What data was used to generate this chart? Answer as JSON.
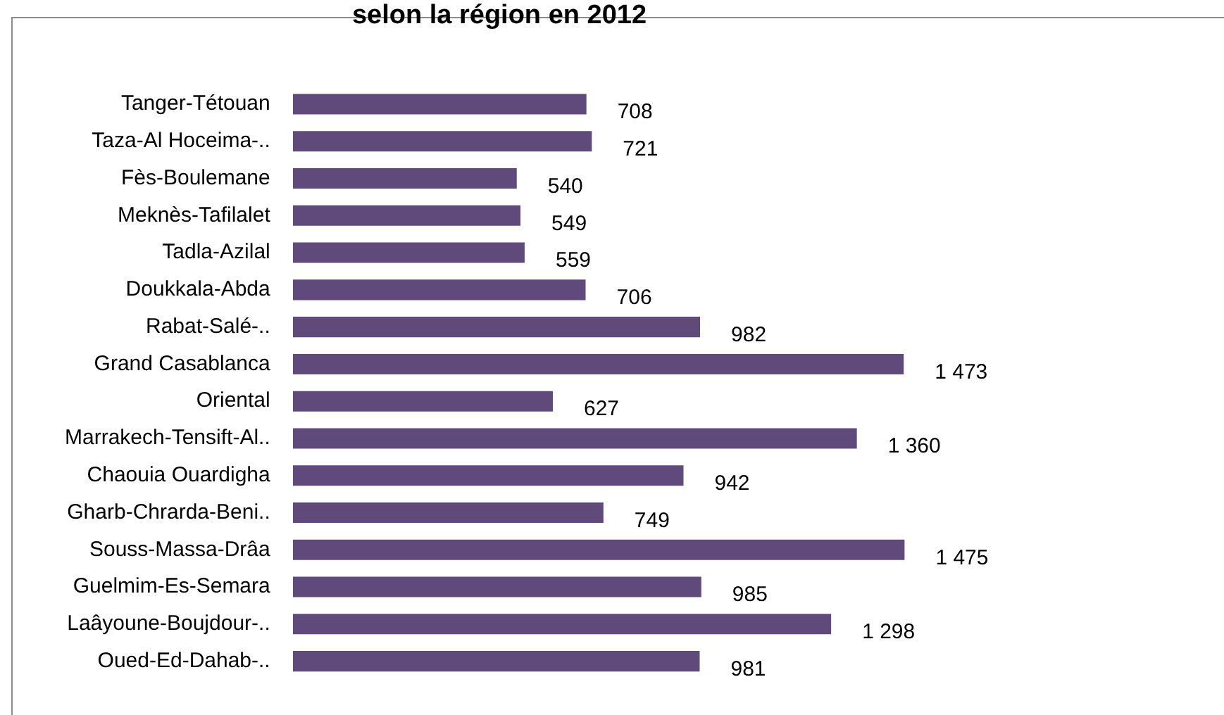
{
  "chart_data": {
    "type": "bar",
    "orientation": "horizontal",
    "title": "selon la région en 2012",
    "categories": [
      "Tanger-Tétouan",
      "Taza-Al Hoceima-..",
      "Fès-Boulemane",
      "Meknès-Tafilalet",
      "Tadla-Azilal",
      "Doukkala-Abda",
      "Rabat-Salé-..",
      "Grand Casablanca",
      "Oriental",
      "Marrakech-Tensift-Al..",
      "Chaouia Ouardigha",
      "Gharb-Chrarda-Beni..",
      "Souss-Massa-Drâa",
      "Guelmim-Es-Semara",
      "Laâyoune-Boujdour-..",
      "Oued-Ed-Dahab-.."
    ],
    "values": [
      708,
      721,
      540,
      549,
      559,
      706,
      982,
      1473,
      627,
      1360,
      942,
      749,
      1475,
      985,
      1298,
      981
    ],
    "value_labels": [
      "708",
      "721",
      "540",
      "549",
      "559",
      "706",
      "982",
      "1 473",
      "627",
      "1 360",
      "942",
      "749",
      "1 475",
      "985",
      "1 298",
      "981"
    ],
    "color": "#604a7b",
    "grid": false,
    "legend": false,
    "tick_labels": "y"
  }
}
